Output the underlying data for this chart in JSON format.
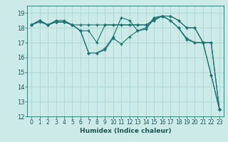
{
  "title": "",
  "xlabel": "Humidex (Indice chaleur)",
  "bg_color": "#cceae7",
  "grid_color": "#b0d8d4",
  "line_color": "#1a7070",
  "xlim": [
    -0.5,
    23.5
  ],
  "ylim": [
    12,
    19.5
  ],
  "yticks": [
    12,
    13,
    14,
    15,
    16,
    17,
    18,
    19
  ],
  "xticks": [
    0,
    1,
    2,
    3,
    4,
    5,
    6,
    7,
    8,
    9,
    10,
    11,
    12,
    13,
    14,
    15,
    16,
    17,
    18,
    19,
    20,
    21,
    22,
    23
  ],
  "series": [
    [
      18.2,
      18.5,
      18.2,
      18.5,
      18.5,
      18.2,
      18.2,
      18.2,
      18.2,
      18.2,
      18.2,
      18.2,
      18.2,
      18.2,
      18.2,
      18.5,
      18.8,
      18.8,
      18.5,
      18.0,
      18.0,
      17.0,
      17.0,
      12.5
    ],
    [
      18.2,
      18.4,
      18.2,
      18.4,
      18.4,
      18.2,
      17.8,
      16.3,
      16.3,
      16.5,
      17.3,
      16.9,
      17.4,
      17.8,
      17.9,
      18.6,
      18.8,
      18.5,
      18.0,
      17.2,
      17.0,
      17.0,
      14.8,
      12.5
    ],
    [
      18.2,
      18.5,
      18.2,
      18.4,
      18.4,
      18.2,
      17.8,
      16.3,
      16.3,
      16.6,
      17.4,
      18.7,
      18.5,
      17.8,
      18.0,
      18.7,
      18.8,
      18.5,
      18.0,
      17.3,
      17.0,
      17.0,
      14.8,
      12.5
    ],
    [
      18.2,
      18.5,
      18.2,
      18.4,
      18.4,
      18.2,
      17.8,
      17.8,
      17.0,
      18.2,
      18.2,
      18.2,
      18.2,
      18.2,
      18.2,
      18.5,
      18.8,
      18.8,
      18.5,
      18.0,
      18.0,
      17.0,
      17.0,
      12.5
    ]
  ]
}
